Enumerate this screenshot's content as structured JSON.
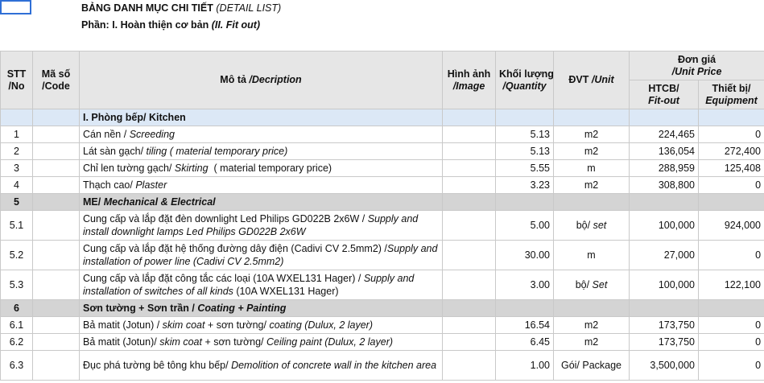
{
  "header": {
    "title_vi": "BẢNG DANH MỤC CHI TIẾT",
    "title_en": "(DETAIL LIST)",
    "section_vi": "Phần: I. Hoàn thiện cơ bản",
    "section_en": "(II. Fit out)"
  },
  "columns": {
    "stt_vi": "STT",
    "stt_en": "/No",
    "code_vi": "Mã số",
    "code_en": "/Code",
    "desc_vi": "Mô tả ",
    "desc_en": "/Decription",
    "image_vi": "Hình ảnh",
    "image_en": "/Image",
    "qty_vi": "Khối lượng",
    "qty_en": "/Quantity",
    "unit_vi": "ĐVT ",
    "unit_en": "/Unit",
    "price_vi": "Đơn giá",
    "price_en": "/Unit Price",
    "fitout_vi": "HTCB/",
    "fitout_en": "Fit-out",
    "equip_vi": "Thiết bị/",
    "equip_en": "Equipment"
  },
  "sections": [
    {
      "no": "",
      "title_vi": "I. Phòng bếp/ Kitchen",
      "title_en": ""
    },
    {
      "no": "5",
      "title_vi": "ME/ ",
      "title_en": "Mechanical & Electrical"
    },
    {
      "no": "6",
      "title_vi": "Sơn tường + Sơn trần / ",
      "title_en": "Coating + Painting"
    }
  ],
  "rows": [
    {
      "no": "1",
      "desc_vi": "Cán nền / ",
      "desc_en": "Screeding",
      "desc_tail": "",
      "qty": "5.13",
      "unit_vi": "m2",
      "unit_en": "",
      "fitout": "224,465",
      "equip": "0"
    },
    {
      "no": "2",
      "desc_vi": "Lát sàn gạch/ ",
      "desc_en": "tiling ( material temporary price)",
      "desc_tail": "",
      "qty": "5.13",
      "unit_vi": "m2",
      "unit_en": "",
      "fitout": "136,054",
      "equip": "272,400"
    },
    {
      "no": "3",
      "desc_vi": "Chỉ len tường gạch/ ",
      "desc_en": "Skirting",
      "desc_tail": "  ( material temporary price)",
      "qty": "5.55",
      "unit_vi": "m",
      "unit_en": "",
      "fitout": "288,959",
      "equip": "125,408"
    },
    {
      "no": "4",
      "desc_vi": "Thạch cao/ ",
      "desc_en": "Plaster",
      "desc_tail": "",
      "qty": "3.23",
      "unit_vi": "m2",
      "unit_en": "",
      "fitout": "308,800",
      "equip": "0"
    },
    {
      "no": "5.1",
      "desc_vi": "Cung cấp và lắp đặt đèn downlight Led Philips GD022B 2x6W / ",
      "desc_en": "Supply and install downlight lamps Led Philips GD022B 2x6W",
      "desc_tail": "",
      "qty": "5.00",
      "unit_vi": "bộ/ ",
      "unit_en": "set",
      "fitout": "100,000",
      "equip": "924,000"
    },
    {
      "no": "5.2",
      "desc_vi": "Cung cấp và lắp đặt hệ thống đường dây điện (Cadivi CV 2.5mm2) /",
      "desc_en": "Supply and installation of power line (Cadivi CV 2.5mm2)",
      "desc_tail": "",
      "qty": "30.00",
      "unit_vi": "m",
      "unit_en": "",
      "fitout": "27,000",
      "equip": "0"
    },
    {
      "no": "5.3",
      "desc_vi": "Cung cấp và lắp đặt công tắc các loại (10A WXEL131 Hager) / ",
      "desc_en": "Supply and installation of switches of all kinds",
      "desc_tail": " (10A WXEL131 Hager)",
      "qty": "3.00",
      "unit_vi": "bộ/ ",
      "unit_en": "Set",
      "fitout": "100,000",
      "equip": "122,100"
    },
    {
      "no": "6.1",
      "desc_vi": "Bả matit (Jotun) / ",
      "desc_en": "skim coat",
      "desc_tail": " + sơn tường/ ",
      "desc_en2": "coating (Dulux, 2 layer)",
      "qty": "16.54",
      "unit_vi": "m2",
      "unit_en": "",
      "fitout": "173,750",
      "equip": "0"
    },
    {
      "no": "6.2",
      "desc_vi": "Bả matit (Jotun)/ ",
      "desc_en": "skim coat",
      "desc_tail": " + sơn tường/ ",
      "desc_en2": "Ceiling paint (Dulux, 2 layer)",
      "qty": "6.45",
      "unit_vi": "m2",
      "unit_en": "",
      "fitout": "173,750",
      "equip": "0"
    },
    {
      "no": "6.3",
      "desc_vi": "Đục phá tường bê tông khu bếp/ ",
      "desc_en": "Demolition of concrete wall in the kitchen area",
      "desc_tail": "",
      "qty": "1.00",
      "unit_vi": "Gói/ Package",
      "unit_en": "",
      "fitout": "3,500,000",
      "equip": "0"
    }
  ]
}
